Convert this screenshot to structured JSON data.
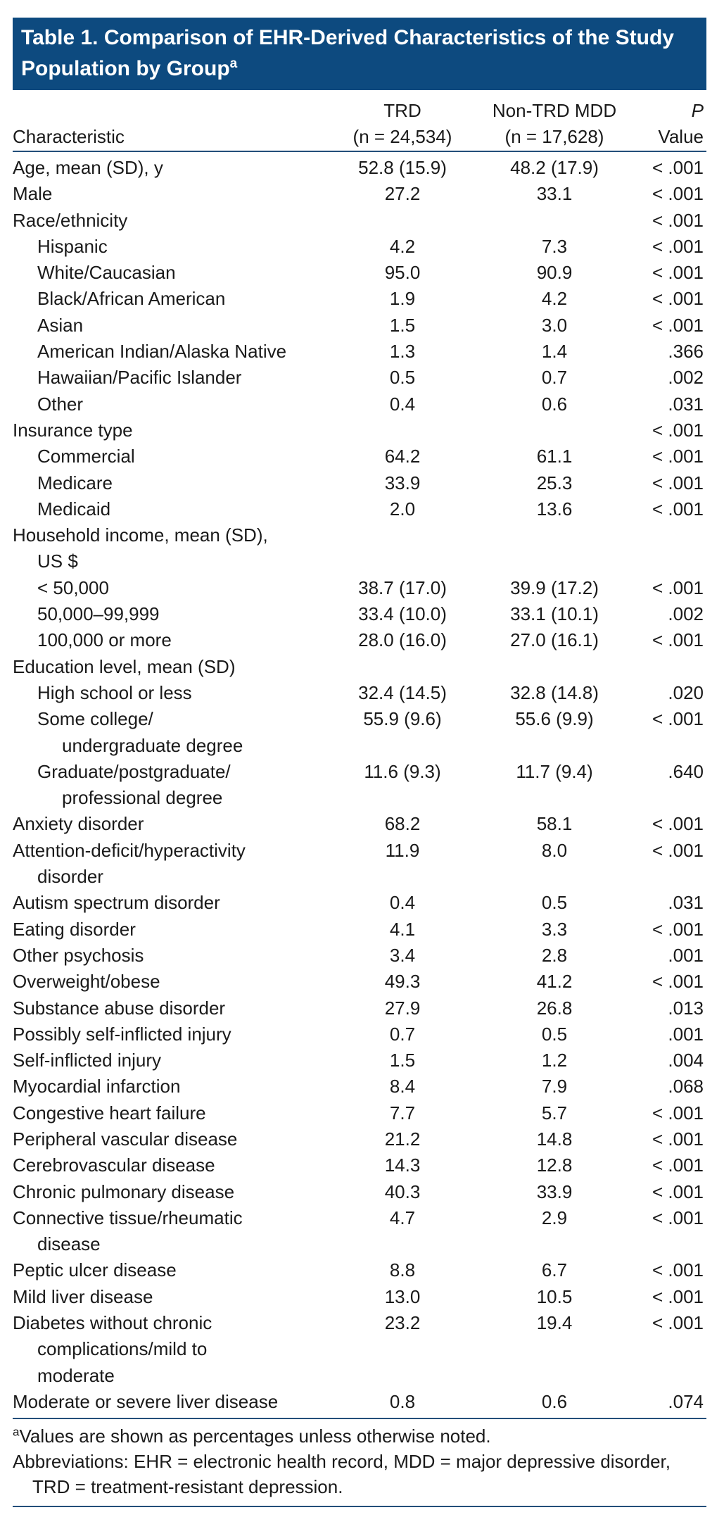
{
  "title": "Table 1. Comparison of EHR-Derived Characteristics of the Study Population by Group",
  "title_note": "a",
  "header": {
    "characteristic": "Characteristic",
    "trd": [
      "TRD",
      "(n = 24,534)"
    ],
    "non_trd": [
      "Non-TRD MDD",
      "(n = 17,628)"
    ],
    "p": [
      "P",
      "Value"
    ]
  },
  "rows": [
    {
      "label": "Age, mean (SD), y",
      "trd": "52.8 (15.9)",
      "non_trd": "48.2 (17.9)",
      "p": "< .001"
    },
    {
      "label": "Male",
      "trd": "27.2",
      "non_trd": "33.1",
      "p": "< .001"
    },
    {
      "label": "Race/ethnicity",
      "p": "< .001",
      "items": [
        {
          "label": "Hispanic",
          "trd": "4.2",
          "non_trd": "7.3",
          "p": "< .001"
        },
        {
          "label": "White/Caucasian",
          "trd": "95.0",
          "non_trd": "90.9",
          "p": "< .001"
        },
        {
          "label": "Black/African American",
          "trd": "1.9",
          "non_trd": "4.2",
          "p": "< .001"
        },
        {
          "label": "Asian",
          "trd": "1.5",
          "non_trd": "3.0",
          "p": "< .001"
        },
        {
          "label": "American Indian/Alaska Native",
          "trd": "1.3",
          "non_trd": "1.4",
          "p": ".366"
        },
        {
          "label": "Hawaiian/Pacific Islander",
          "trd": "0.5",
          "non_trd": "0.7",
          "p": ".002"
        },
        {
          "label": "Other",
          "trd": "0.4",
          "non_trd": "0.6",
          "p": ".031"
        }
      ]
    },
    {
      "label": "Insurance type",
      "p": "< .001",
      "items": [
        {
          "label": "Commercial",
          "trd": "64.2",
          "non_trd": "61.1",
          "p": "< .001"
        },
        {
          "label": "Medicare",
          "trd": "33.9",
          "non_trd": "25.3",
          "p": "< .001"
        },
        {
          "label": "Medicaid",
          "trd": "2.0",
          "non_trd": "13.6",
          "p": "< .001"
        }
      ]
    },
    {
      "label": [
        "Household income, mean (SD),",
        "US $"
      ],
      "items": [
        {
          "label": "< 50,000",
          "trd": "38.7 (17.0)",
          "non_trd": "39.9 (17.2)",
          "p": "< .001"
        },
        {
          "label": "50,000–99,999",
          "trd": "33.4 (10.0)",
          "non_trd": "33.1 (10.1)",
          "p": ".002"
        },
        {
          "label": "100,000 or more",
          "trd": "28.0 (16.0)",
          "non_trd": "27.0 (16.1)",
          "p": "< .001"
        }
      ]
    },
    {
      "label": "Education level, mean (SD)",
      "items": [
        {
          "label": "High school or less",
          "trd": "32.4 (14.5)",
          "non_trd": "32.8 (14.8)",
          "p": ".020"
        },
        {
          "label": [
            "Some college/",
            "undergraduate degree"
          ],
          "trd": "55.9 (9.6)",
          "non_trd": "55.6 (9.9)",
          "p": "< .001"
        },
        {
          "label": [
            "Graduate/postgraduate/",
            "professional degree"
          ],
          "trd": "11.6 (9.3)",
          "non_trd": "11.7 (9.4)",
          "p": ".640"
        }
      ]
    },
    {
      "label": "Anxiety disorder",
      "trd": "68.2",
      "non_trd": "58.1",
      "p": "< .001"
    },
    {
      "label": [
        "Attention-deficit/hyperactivity",
        "disorder"
      ],
      "trd": "11.9",
      "non_trd": "8.0",
      "p": "< .001"
    },
    {
      "label": "Autism spectrum disorder",
      "trd": "0.4",
      "non_trd": "0.5",
      "p": ".031"
    },
    {
      "label": "Eating disorder",
      "trd": "4.1",
      "non_trd": "3.3",
      "p": "< .001"
    },
    {
      "label": "Other psychosis",
      "trd": "3.4",
      "non_trd": "2.8",
      "p": ".001"
    },
    {
      "label": "Overweight/obese",
      "trd": "49.3",
      "non_trd": "41.2",
      "p": "< .001"
    },
    {
      "label": "Substance abuse disorder",
      "trd": "27.9",
      "non_trd": "26.8",
      "p": ".013"
    },
    {
      "label": "Possibly self-inflicted injury",
      "trd": "0.7",
      "non_trd": "0.5",
      "p": ".001"
    },
    {
      "label": "Self-inflicted injury",
      "trd": "1.5",
      "non_trd": "1.2",
      "p": ".004"
    },
    {
      "label": "Myocardial infarction",
      "trd": "8.4",
      "non_trd": "7.9",
      "p": ".068"
    },
    {
      "label": "Congestive heart failure",
      "trd": "7.7",
      "non_trd": "5.7",
      "p": "< .001"
    },
    {
      "label": "Peripheral vascular disease",
      "trd": "21.2",
      "non_trd": "14.8",
      "p": "< .001"
    },
    {
      "label": "Cerebrovascular disease",
      "trd": "14.3",
      "non_trd": "12.8",
      "p": "< .001"
    },
    {
      "label": "Chronic pulmonary disease",
      "trd": "40.3",
      "non_trd": "33.9",
      "p": "< .001"
    },
    {
      "label": [
        "Connective tissue/rheumatic",
        "disease"
      ],
      "trd": "4.7",
      "non_trd": "2.9",
      "p": "< .001"
    },
    {
      "label": "Peptic ulcer disease",
      "trd": "8.8",
      "non_trd": "6.7",
      "p": "< .001"
    },
    {
      "label": "Mild liver disease",
      "trd": "13.0",
      "non_trd": "10.5",
      "p": "< .001"
    },
    {
      "label": [
        "Diabetes without chronic",
        "complications/mild to",
        "moderate"
      ],
      "trd": "23.2",
      "non_trd": "19.4",
      "p": "< .001"
    },
    {
      "label": "Moderate or severe liver disease",
      "trd": "0.8",
      "non_trd": "0.6",
      "p": ".074"
    }
  ],
  "footnotes": [
    {
      "marker": "a",
      "text": "Values are shown as percentages unless otherwise noted."
    },
    {
      "text": "Abbreviations: EHR = electronic health record, MDD = major depressive disorder, TRD = treatment-resistant depression."
    }
  ]
}
